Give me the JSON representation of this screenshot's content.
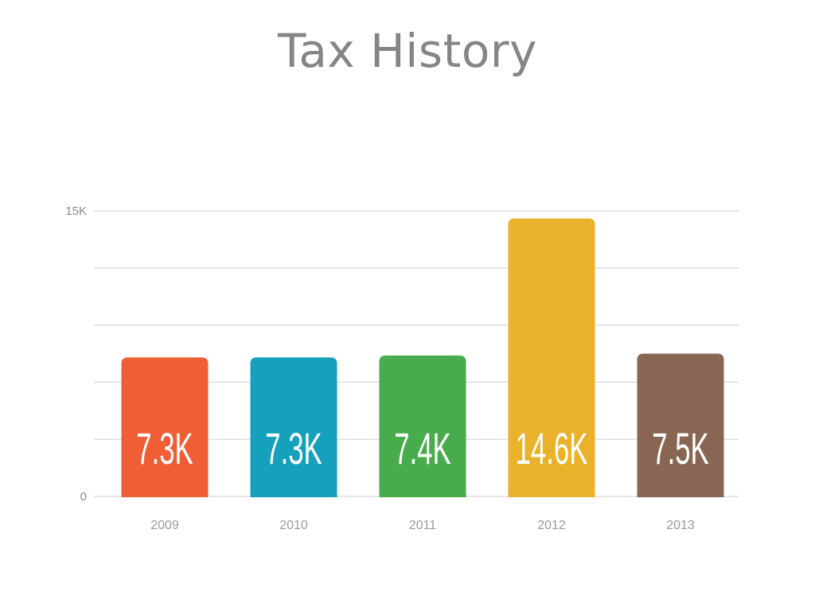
{
  "chart_data": {
    "type": "bar",
    "title": "Tax History",
    "xlabel": "",
    "ylabel": "",
    "categories": [
      "2009",
      "2010",
      "2011",
      "2012",
      "2013"
    ],
    "values": [
      7300,
      7300,
      7400,
      14600,
      7500
    ],
    "data_labels": [
      "7.3K",
      "7.3K",
      "7.4K",
      "14.6K",
      "7.5K"
    ],
    "colors": [
      "#f05e35",
      "#15a0bc",
      "#48ab4c",
      "#eab22a",
      "#896653"
    ],
    "ylim": [
      0,
      15000
    ],
    "yticks": [
      0,
      15000
    ],
    "ytick_labels": [
      "0",
      "15K"
    ],
    "gridlines": [
      0,
      3000,
      6000,
      9000,
      12000,
      15000
    ],
    "grid": true,
    "legend": "none"
  }
}
